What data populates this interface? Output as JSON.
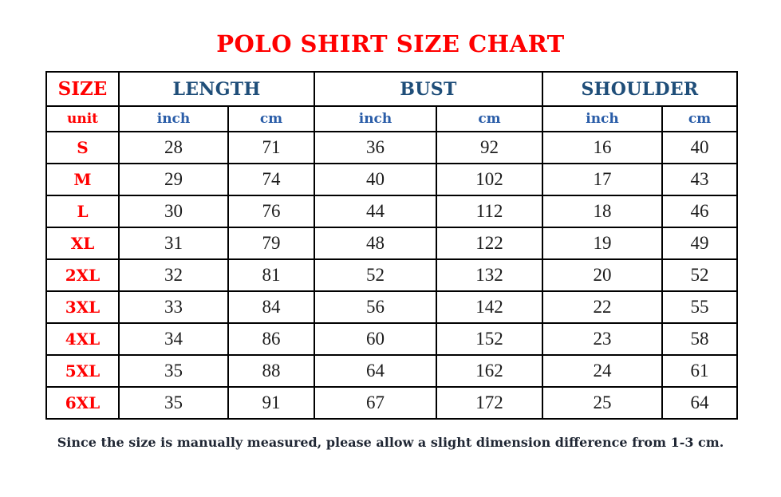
{
  "page": {
    "title": "POLO SHIRT SIZE CHART",
    "footnote": "Since the size is manually measured, please allow a slight dimension difference from 1-3 cm."
  },
  "colors": {
    "title_red": "#FF0000",
    "header_navy": "#1F4E79",
    "unit_blue": "#2A5DA8",
    "text_dark": "#1C1C1C",
    "footnote_dark": "#1F2633"
  },
  "chart_data": {
    "type": "table",
    "title": "POLO SHIRT SIZE CHART",
    "header": {
      "size_label": "SIZE",
      "unit_label": "unit",
      "groups": [
        "LENGTH",
        "BUST",
        "SHOULDER"
      ],
      "units": [
        "inch",
        "cm",
        "inch",
        "cm",
        "inch",
        "cm"
      ]
    },
    "rows": [
      {
        "size": "S",
        "values": [
          28,
          71,
          36,
          92,
          16,
          40
        ]
      },
      {
        "size": "M",
        "values": [
          29,
          74,
          40,
          102,
          17,
          43
        ]
      },
      {
        "size": "L",
        "values": [
          30,
          76,
          44,
          112,
          18,
          46
        ]
      },
      {
        "size": "XL",
        "values": [
          31,
          79,
          48,
          122,
          19,
          49
        ]
      },
      {
        "size": "2XL",
        "values": [
          32,
          81,
          52,
          132,
          20,
          52
        ]
      },
      {
        "size": "3XL",
        "values": [
          33,
          84,
          56,
          142,
          22,
          55
        ]
      },
      {
        "size": "4XL",
        "values": [
          34,
          86,
          60,
          152,
          23,
          58
        ]
      },
      {
        "size": "5XL",
        "values": [
          35,
          88,
          64,
          162,
          24,
          61
        ]
      },
      {
        "size": "6XL",
        "values": [
          35,
          91,
          67,
          172,
          25,
          64
        ]
      }
    ]
  }
}
